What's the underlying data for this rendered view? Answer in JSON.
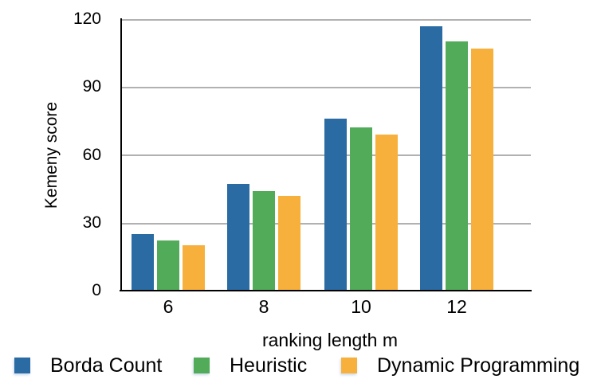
{
  "chart_data": {
    "type": "bar",
    "title": "",
    "xlabel": "ranking length m",
    "ylabel": "Kemeny score",
    "categories": [
      "6",
      "8",
      "10",
      "12"
    ],
    "series": [
      {
        "name": "Borda Count",
        "color": "#2A6BA3",
        "values": [
          25,
          47,
          76,
          117
        ]
      },
      {
        "name": "Heuristic",
        "color": "#52AB58",
        "values": [
          22,
          44,
          72,
          110
        ]
      },
      {
        "name": "Dynamic Programming",
        "color": "#F8B03C",
        "values": [
          20,
          42,
          69,
          107
        ]
      }
    ],
    "ylim": [
      0,
      120
    ],
    "yticks": [
      0,
      30,
      60,
      90,
      120
    ],
    "grid": true,
    "legend_position": "bottom",
    "gridline_color": "#B1B1B1",
    "axis_color": "#000000"
  }
}
